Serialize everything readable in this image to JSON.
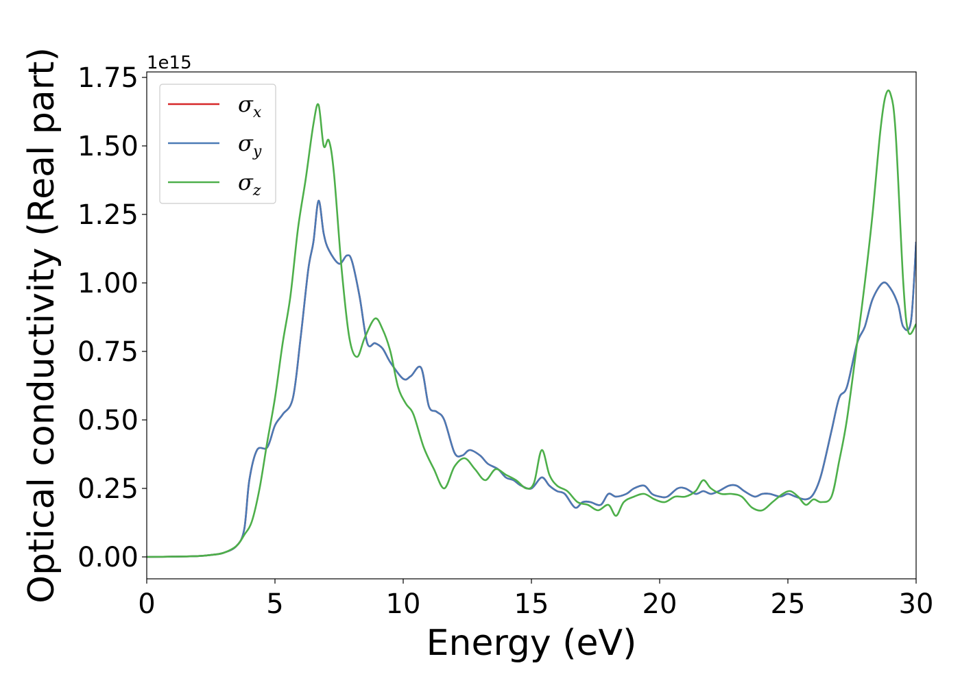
{
  "chart_data": {
    "type": "line",
    "xlabel": "Energy (eV)",
    "ylabel": "Optical conductivity (Real part)",
    "y_offset_text": "1e15",
    "xlim": [
      0,
      30
    ],
    "ylim": [
      -0.08,
      1.77
    ],
    "xticks": [
      0,
      5,
      10,
      15,
      20,
      25,
      30
    ],
    "xtick_labels": [
      "0",
      "5",
      "10",
      "15",
      "20",
      "25",
      "30"
    ],
    "yticks": [
      0,
      0.25,
      0.5,
      0.75,
      1.0,
      1.25,
      1.5,
      1.75
    ],
    "ytick_labels": [
      "0.00",
      "0.25",
      "0.50",
      "0.75",
      "1.00",
      "1.25",
      "1.50",
      "1.75"
    ],
    "grid": false,
    "legend_position": "upper-left",
    "series": [
      {
        "name": "σx",
        "symbol": "σ",
        "subscript": "x",
        "color": "#d62728",
        "x": [
          0,
          1,
          2,
          2.5,
          3,
          3.5,
          3.8,
          4.0,
          4.3,
          4.7,
          5.0,
          5.3,
          5.7,
          6.0,
          6.3,
          6.5,
          6.7,
          6.9,
          7.1,
          7.5,
          7.8,
          8.0,
          8.3,
          8.6,
          8.9,
          9.2,
          9.5,
          10.0,
          10.3,
          10.7,
          11.0,
          11.3,
          11.6,
          12.0,
          12.3,
          12.6,
          13.0,
          13.3,
          13.7,
          14.0,
          14.3,
          14.6,
          15.0,
          15.4,
          15.7,
          16.0,
          16.3,
          16.7,
          17.0,
          17.3,
          17.7,
          18.0,
          18.3,
          18.7,
          19.0,
          19.4,
          19.7,
          20.0,
          20.3,
          20.7,
          21.0,
          21.4,
          21.7,
          22.0,
          22.3,
          22.7,
          23.0,
          23.3,
          23.7,
          24.0,
          24.3,
          24.7,
          25.0,
          25.3,
          25.7,
          26.0,
          26.3,
          26.7,
          27.0,
          27.3,
          27.7,
          28.0,
          28.3,
          28.7,
          29.0,
          29.3,
          29.5,
          29.8,
          30.0
        ],
        "y": [
          0,
          0.001,
          0.003,
          0.007,
          0.015,
          0.04,
          0.1,
          0.28,
          0.39,
          0.4,
          0.48,
          0.52,
          0.58,
          0.8,
          1.05,
          1.15,
          1.3,
          1.18,
          1.12,
          1.07,
          1.1,
          1.08,
          0.95,
          0.78,
          0.78,
          0.76,
          0.71,
          0.65,
          0.66,
          0.69,
          0.55,
          0.53,
          0.5,
          0.38,
          0.37,
          0.39,
          0.37,
          0.34,
          0.32,
          0.29,
          0.28,
          0.26,
          0.25,
          0.29,
          0.26,
          0.24,
          0.23,
          0.18,
          0.2,
          0.2,
          0.19,
          0.23,
          0.22,
          0.23,
          0.25,
          0.26,
          0.23,
          0.22,
          0.22,
          0.25,
          0.25,
          0.23,
          0.24,
          0.23,
          0.24,
          0.26,
          0.26,
          0.24,
          0.22,
          0.23,
          0.23,
          0.22,
          0.23,
          0.22,
          0.21,
          0.23,
          0.3,
          0.46,
          0.58,
          0.62,
          0.78,
          0.84,
          0.94,
          1.0,
          0.98,
          0.92,
          0.84,
          0.86,
          1.15
        ]
      },
      {
        "name": "σy",
        "symbol": "σ",
        "subscript": "y",
        "color": "#4a7ab5",
        "x": [
          0,
          1,
          2,
          2.5,
          3,
          3.5,
          3.8,
          4.0,
          4.3,
          4.7,
          5.0,
          5.3,
          5.7,
          6.0,
          6.3,
          6.5,
          6.7,
          6.9,
          7.1,
          7.5,
          7.8,
          8.0,
          8.3,
          8.6,
          8.9,
          9.2,
          9.5,
          10.0,
          10.3,
          10.7,
          11.0,
          11.3,
          11.6,
          12.0,
          12.3,
          12.6,
          13.0,
          13.3,
          13.7,
          14.0,
          14.3,
          14.6,
          15.0,
          15.4,
          15.7,
          16.0,
          16.3,
          16.7,
          17.0,
          17.3,
          17.7,
          18.0,
          18.3,
          18.7,
          19.0,
          19.4,
          19.7,
          20.0,
          20.3,
          20.7,
          21.0,
          21.4,
          21.7,
          22.0,
          22.3,
          22.7,
          23.0,
          23.3,
          23.7,
          24.0,
          24.3,
          24.7,
          25.0,
          25.3,
          25.7,
          26.0,
          26.3,
          26.7,
          27.0,
          27.3,
          27.7,
          28.0,
          28.3,
          28.7,
          29.0,
          29.3,
          29.5,
          29.8,
          30.0
        ],
        "y": [
          0,
          0.001,
          0.003,
          0.007,
          0.015,
          0.04,
          0.1,
          0.28,
          0.39,
          0.4,
          0.48,
          0.52,
          0.58,
          0.8,
          1.05,
          1.15,
          1.3,
          1.18,
          1.12,
          1.07,
          1.1,
          1.08,
          0.95,
          0.78,
          0.78,
          0.76,
          0.71,
          0.65,
          0.66,
          0.69,
          0.55,
          0.53,
          0.5,
          0.38,
          0.37,
          0.39,
          0.37,
          0.34,
          0.32,
          0.29,
          0.28,
          0.26,
          0.25,
          0.29,
          0.26,
          0.24,
          0.23,
          0.18,
          0.2,
          0.2,
          0.19,
          0.23,
          0.22,
          0.23,
          0.25,
          0.26,
          0.23,
          0.22,
          0.22,
          0.25,
          0.25,
          0.23,
          0.24,
          0.23,
          0.24,
          0.26,
          0.26,
          0.24,
          0.22,
          0.23,
          0.23,
          0.22,
          0.23,
          0.22,
          0.21,
          0.23,
          0.3,
          0.46,
          0.58,
          0.62,
          0.78,
          0.84,
          0.94,
          1.0,
          0.98,
          0.92,
          0.84,
          0.86,
          1.15
        ]
      },
      {
        "name": "σz",
        "symbol": "σ",
        "subscript": "z",
        "color": "#4daf4a",
        "x": [
          0,
          1,
          2,
          2.5,
          3,
          3.5,
          3.8,
          4.1,
          4.4,
          4.7,
          5.0,
          5.3,
          5.6,
          5.9,
          6.2,
          6.5,
          6.7,
          6.9,
          7.1,
          7.3,
          7.6,
          7.9,
          8.2,
          8.5,
          8.9,
          9.2,
          9.5,
          9.8,
          10.1,
          10.4,
          10.8,
          11.2,
          11.6,
          12.0,
          12.4,
          12.8,
          13.2,
          13.6,
          14.0,
          14.4,
          14.8,
          15.1,
          15.4,
          15.7,
          16.0,
          16.4,
          16.8,
          17.2,
          17.6,
          18.0,
          18.3,
          18.6,
          19.0,
          19.4,
          19.8,
          20.2,
          20.6,
          21.0,
          21.4,
          21.7,
          22.0,
          22.4,
          22.8,
          23.2,
          23.6,
          24.0,
          24.4,
          24.8,
          25.1,
          25.4,
          25.7,
          26.0,
          26.3,
          26.7,
          27.0,
          27.3,
          27.7,
          28.0,
          28.3,
          28.6,
          28.8,
          29.0,
          29.2,
          29.5,
          29.7,
          30.0
        ],
        "y": [
          0,
          0.001,
          0.003,
          0.007,
          0.015,
          0.04,
          0.08,
          0.13,
          0.25,
          0.42,
          0.58,
          0.78,
          0.95,
          1.2,
          1.38,
          1.58,
          1.65,
          1.5,
          1.52,
          1.4,
          1.05,
          0.8,
          0.73,
          0.8,
          0.87,
          0.83,
          0.75,
          0.62,
          0.56,
          0.52,
          0.4,
          0.32,
          0.25,
          0.33,
          0.36,
          0.32,
          0.28,
          0.32,
          0.3,
          0.28,
          0.25,
          0.27,
          0.39,
          0.3,
          0.26,
          0.24,
          0.2,
          0.19,
          0.17,
          0.19,
          0.15,
          0.2,
          0.22,
          0.23,
          0.21,
          0.2,
          0.22,
          0.22,
          0.24,
          0.28,
          0.25,
          0.23,
          0.23,
          0.22,
          0.18,
          0.17,
          0.2,
          0.23,
          0.24,
          0.22,
          0.19,
          0.21,
          0.2,
          0.22,
          0.35,
          0.5,
          0.78,
          1.0,
          1.25,
          1.55,
          1.68,
          1.69,
          1.55,
          1.0,
          0.82,
          0.85
        ]
      }
    ]
  }
}
